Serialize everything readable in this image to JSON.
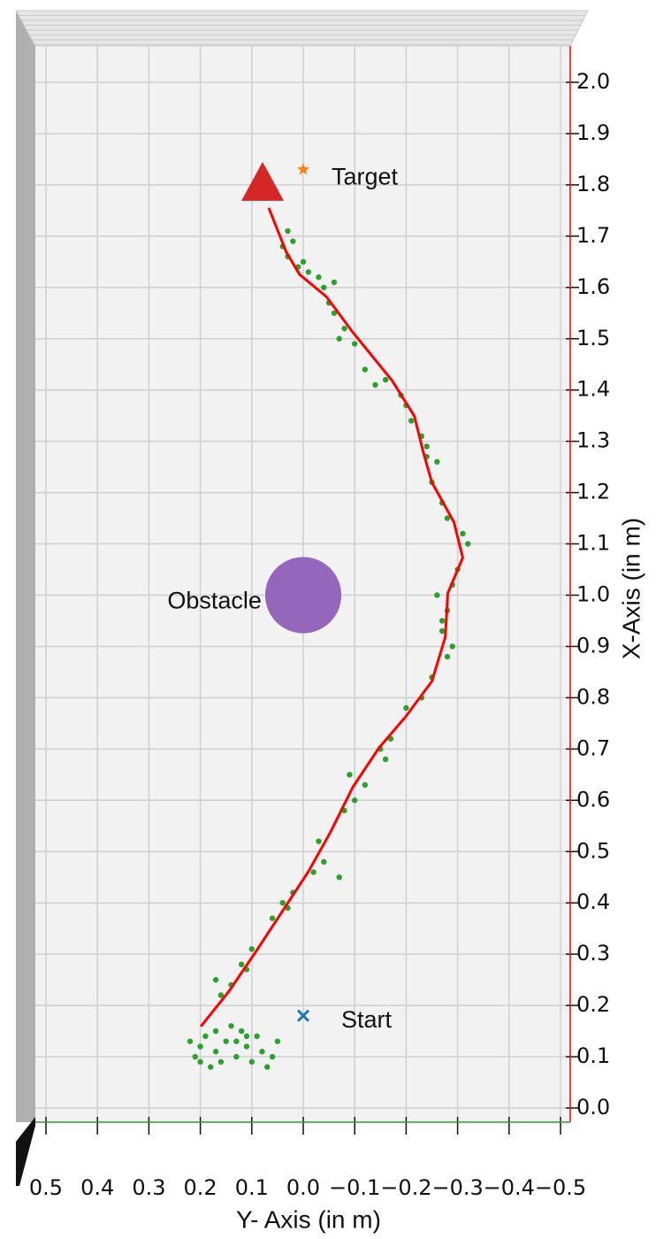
{
  "chart_data": {
    "type": "scatter",
    "xlabel": "Y- Axis (in m)",
    "ylabel": "X-Axis (in m)",
    "xlim": [
      0.5,
      -0.5
    ],
    "ylim": [
      0,
      2.0
    ],
    "xticks": [
      0.5,
      0.4,
      0.3,
      0.2,
      0.1,
      {
        "value": 0,
        "label": "0.0"
      },
      {
        "value": -0.1,
        "label": "−0.1"
      },
      {
        "value": -0.2,
        "label": "−0.2"
      },
      {
        "value": -0.3,
        "label": "−0.3"
      },
      {
        "value": -0.4,
        "label": "−0.4"
      },
      {
        "value": -0.5,
        "label": "−0.5"
      }
    ],
    "yticks": [
      {
        "value": 0,
        "label": "0.0"
      },
      0.1,
      0.2,
      0.3,
      0.4,
      0.5,
      0.6,
      0.7,
      0.8,
      0.9,
      {
        "value": 1,
        "label": "1.0"
      },
      1.1,
      1.2,
      1.3,
      1.4,
      1.5,
      1.6,
      1.7,
      1.8,
      1.9,
      {
        "value": 2,
        "label": "2.0"
      }
    ],
    "grid": true,
    "path": {
      "color": "#ff0000",
      "x": [
        0.199,
        0.144,
        0.092,
        0.041,
        -0.01,
        -0.053,
        -0.096,
        -0.147,
        -0.199,
        -0.25,
        -0.276,
        -0.281,
        -0.31,
        -0.293,
        -0.25,
        -0.233,
        -0.216,
        -0.173,
        -0.096,
        -0.045,
        0.007,
        0.033,
        0.067
      ],
      "y": [
        0.159,
        0.228,
        0.305,
        0.383,
        0.461,
        0.538,
        0.625,
        0.702,
        0.763,
        0.832,
        0.918,
        1.004,
        1.073,
        1.142,
        1.22,
        1.28,
        1.349,
        1.418,
        1.513,
        1.582,
        1.625,
        1.669,
        1.755
      ]
    },
    "samples": {
      "color": "#2ca02c",
      "x": [
        0.2,
        0.21,
        0.19,
        0.17,
        0.15,
        0.13,
        0.11,
        0.09,
        0.08,
        0.12,
        0.16,
        0.18,
        0.14,
        0.1,
        0.06,
        0.07,
        0.05,
        0.2,
        0.22,
        0.13,
        0.17,
        0.11,
        0.16,
        0.14,
        0.17,
        0.12,
        0.1,
        0.11,
        0.06,
        0.04,
        0.02,
        0.03,
        -0.02,
        -0.04,
        -0.07,
        -0.03,
        -0.08,
        -0.1,
        -0.12,
        -0.09,
        -0.15,
        -0.17,
        -0.16,
        -0.2,
        -0.23,
        -0.25,
        -0.28,
        -0.29,
        -0.27,
        -0.28,
        -0.26,
        -0.29,
        -0.27,
        -0.3,
        -0.32,
        -0.31,
        -0.28,
        -0.27,
        -0.25,
        -0.26,
        -0.24,
        -0.23,
        -0.24,
        -0.21,
        -0.2,
        -0.19,
        -0.16,
        -0.14,
        -0.12,
        -0.1,
        -0.08,
        -0.07,
        -0.06,
        -0.05,
        -0.04,
        -0.03,
        -0.01,
        0.01,
        0.03,
        0.04,
        0.02,
        0.03,
        0.0,
        -0.06
      ],
      "y": [
        0.12,
        0.1,
        0.14,
        0.11,
        0.13,
        0.1,
        0.12,
        0.14,
        0.11,
        0.15,
        0.09,
        0.08,
        0.16,
        0.09,
        0.1,
        0.08,
        0.13,
        0.09,
        0.13,
        0.13,
        0.15,
        0.14,
        0.22,
        0.24,
        0.25,
        0.28,
        0.31,
        0.27,
        0.37,
        0.4,
        0.42,
        0.39,
        0.46,
        0.48,
        0.45,
        0.52,
        0.58,
        0.6,
        0.63,
        0.65,
        0.7,
        0.72,
        0.68,
        0.78,
        0.8,
        0.84,
        0.88,
        0.9,
        0.93,
        0.97,
        1.0,
        1.02,
        0.95,
        1.05,
        1.1,
        1.12,
        1.15,
        1.18,
        1.22,
        1.26,
        1.29,
        1.31,
        1.27,
        1.34,
        1.37,
        1.39,
        1.42,
        1.41,
        1.44,
        1.49,
        1.52,
        1.5,
        1.55,
        1.57,
        1.6,
        1.62,
        1.63,
        1.64,
        1.66,
        1.68,
        1.69,
        1.71,
        1.65,
        1.61
      ]
    },
    "start": {
      "x": 0,
      "y": 0.18,
      "color": "#1f77b4"
    },
    "target": {
      "x": 0,
      "y": 1.83,
      "color": "#ff7f0e"
    },
    "obstacle": {
      "x": 0,
      "y": 1.0,
      "radius": 0.074,
      "color": "#9467bd"
    },
    "end": {
      "x": 0.079,
      "y": 1.8,
      "color": "#d62728"
    },
    "annotations": {
      "start": "Start",
      "target": "Target",
      "obstacle": "Obstacle"
    }
  }
}
